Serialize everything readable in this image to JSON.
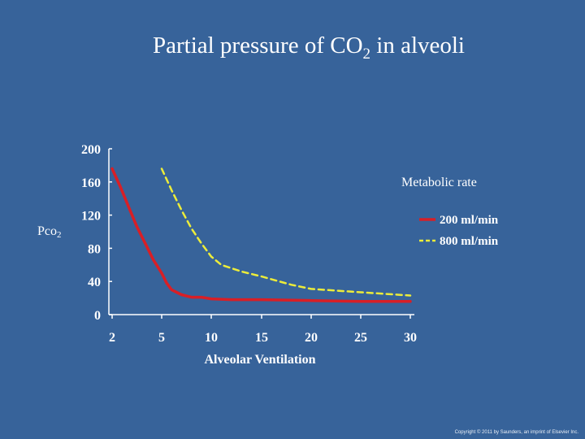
{
  "slide": {
    "title_main": "Partial pressure of CO",
    "title_sub": "2",
    "title_tail": " in alveoli",
    "copyright": "Copyright © 2011 by Saunders, an imprint of Elsevier Inc."
  },
  "colors": {
    "background": "#37639a",
    "series_200": "#d81f26",
    "series_800": "#ecec3a",
    "axis": "#ffffff"
  },
  "chart_data": {
    "type": "line",
    "xlabel": "Alveolar Ventilation",
    "ylabel_main": "Pco",
    "ylabel_sub": "2",
    "legend_title": "Metabolic rate",
    "legend_position": "right",
    "x_ticks": [
      2,
      5,
      10,
      15,
      20,
      25,
      30
    ],
    "y_ticks": [
      0,
      40,
      80,
      120,
      160,
      200
    ],
    "xlim": [
      2,
      30
    ],
    "ylim": [
      0,
      200
    ],
    "grid": false,
    "series": [
      {
        "name": "200 ml/min",
        "color": "#d81f26",
        "style": "solid",
        "x": [
          2,
          2.5,
          3,
          3.5,
          4,
          4.5,
          5,
          5.5,
          6,
          7,
          8,
          9,
          10,
          12,
          15,
          20,
          25,
          30
        ],
        "y": [
          176,
          154,
          130,
          106,
          86,
          66,
          50,
          38,
          30,
          24,
          21,
          21,
          19,
          18,
          18,
          17,
          16,
          16
        ]
      },
      {
        "name": "800 ml/min",
        "color": "#ecec3a",
        "style": "dashed",
        "x": [
          5,
          6,
          7,
          8,
          9,
          10,
          11,
          12,
          13,
          15,
          18,
          20,
          25,
          30
        ],
        "y": [
          176,
          150,
          126,
          104,
          86,
          70,
          60,
          56,
          52,
          46,
          36,
          31,
          27,
          23
        ]
      }
    ]
  }
}
